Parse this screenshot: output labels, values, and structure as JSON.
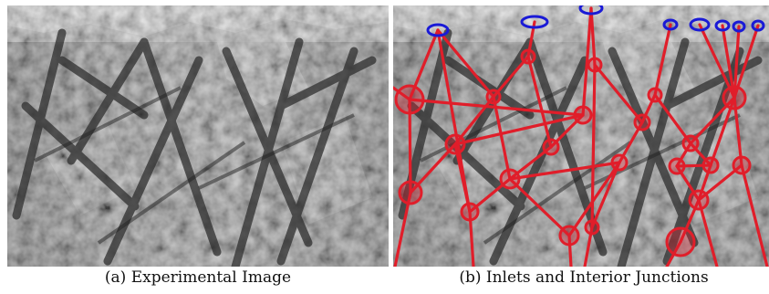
{
  "figure": {
    "subfigures": [
      {
        "caption": "(a) Experimental Image"
      },
      {
        "caption": "(b) Inlets and Interior Junctions"
      }
    ],
    "colors": {
      "network_edges": "#e01e2a",
      "interior_junctions": "#e01e2a",
      "inlets": "#1a1ad6"
    }
  }
}
